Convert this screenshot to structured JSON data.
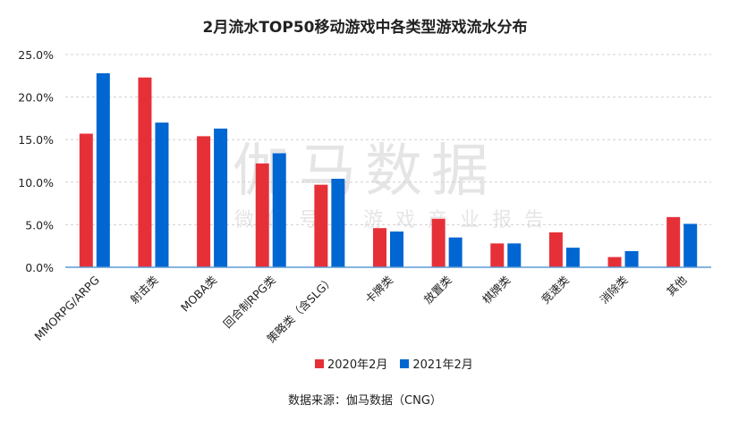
{
  "chart_data": {
    "type": "bar",
    "title": "2月流水TOP50移动游戏中各类型游戏流水分布",
    "categories": [
      "MMORPG/ARPG",
      "射击类",
      "MOBA类",
      "回合制RPG类",
      "策略类（含SLG）",
      "卡牌类",
      "放置类",
      "棋牌类",
      "竞速类",
      "消除类",
      "其他"
    ],
    "series": [
      {
        "name": "2020年2月",
        "color": "#E63038",
        "values": [
          15.7,
          22.3,
          15.4,
          12.2,
          9.7,
          4.6,
          5.7,
          2.8,
          4.1,
          1.2,
          5.9
        ]
      },
      {
        "name": "2021年2月",
        "color": "#0066D1",
        "values": [
          22.8,
          17.0,
          16.3,
          13.4,
          10.4,
          4.2,
          3.5,
          2.8,
          2.3,
          1.9,
          5.1
        ]
      }
    ],
    "yticks": [
      "0.0%",
      "5.0%",
      "10.0%",
      "15.0%",
      "20.0%",
      "25.0%"
    ],
    "ylim": [
      0,
      25
    ],
    "grid": true,
    "legend": "bottom",
    "xlabel": "",
    "ylabel": ""
  },
  "watermark": {
    "main": "伽马数据",
    "sub": "微信号：游戏产业报告"
  },
  "source": "数据来源：伽马数据（CNG）"
}
